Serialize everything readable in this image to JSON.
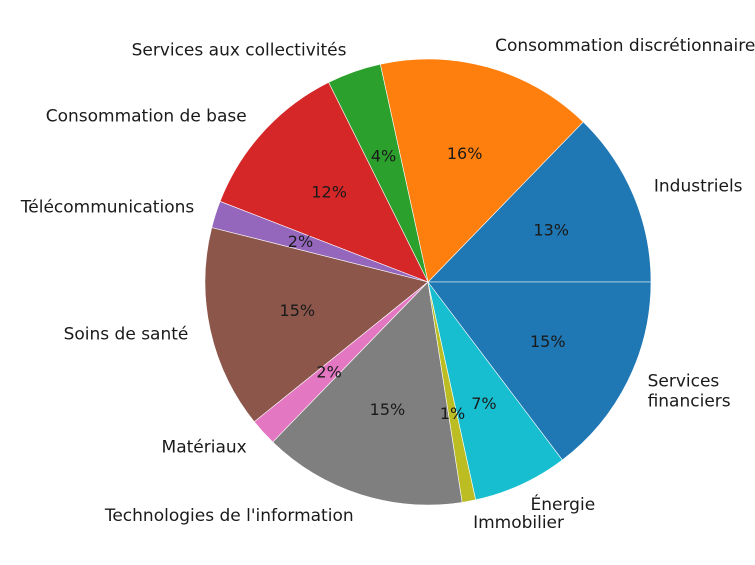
{
  "chart_data": {
    "type": "pie",
    "title": "",
    "start_angle_deg": 0,
    "direction": "counterclockwise",
    "slices": [
      {
        "label": "Industriels",
        "value": 13,
        "pct_label": "13%",
        "color": "#1f77b4"
      },
      {
        "label": "Consommation discrétionnaire",
        "value": 16,
        "pct_label": "16%",
        "color": "#ff7f0e"
      },
      {
        "label": "Services aux collectivités",
        "value": 4,
        "pct_label": "4%",
        "color": "#2ca02c"
      },
      {
        "label": "Consommation de base",
        "value": 12,
        "pct_label": "12%",
        "color": "#d62728"
      },
      {
        "label": "Télécommunications",
        "value": 2,
        "pct_label": "2%",
        "color": "#9467bd"
      },
      {
        "label": "Soins de santé",
        "value": 15,
        "pct_label": "15%",
        "color": "#8c564b"
      },
      {
        "label": "Matériaux",
        "value": 2,
        "pct_label": "2%",
        "color": "#e377c2"
      },
      {
        "label": "Technologies de l'information",
        "value": 15,
        "pct_label": "15%",
        "color": "#7f7f7f"
      },
      {
        "label": "Immobilier",
        "value": 1,
        "pct_label": "1%",
        "color": "#bcbd22"
      },
      {
        "label": "Énergie",
        "value": 7,
        "pct_label": "7%",
        "color": "#17becf"
      },
      {
        "label": "Services\nfinanciers",
        "value": 15,
        "pct_label": "15%",
        "color": "#1f77b4"
      }
    ]
  }
}
